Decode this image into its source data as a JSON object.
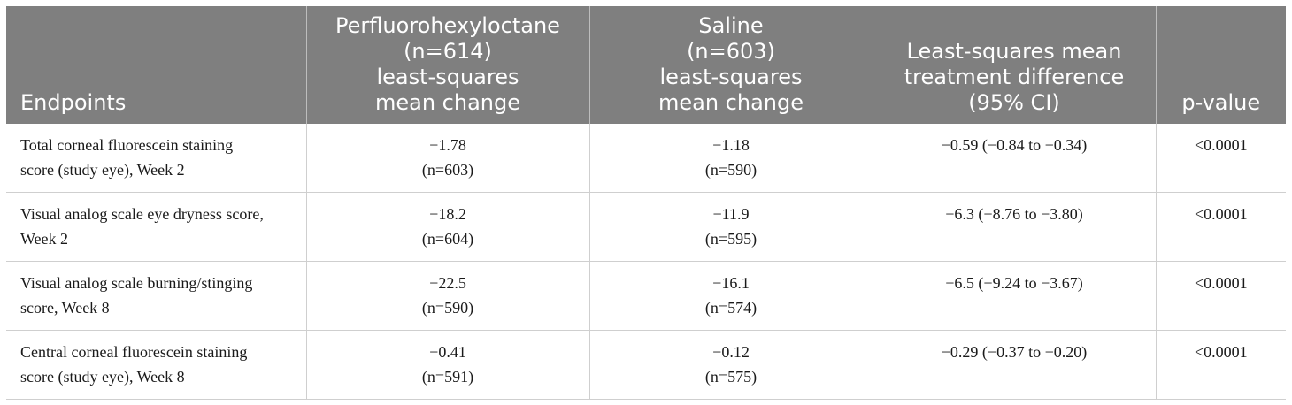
{
  "table": {
    "headers": [
      {
        "lines": [
          "Endpoints"
        ]
      },
      {
        "lines": [
          "Perfluorohexyloctane",
          "(n=614)",
          "least-squares",
          "mean change"
        ]
      },
      {
        "lines": [
          "Saline",
          "(n=603)",
          "least-squares",
          "mean change"
        ]
      },
      {
        "lines": [
          "Least-squares mean",
          "treatment difference",
          "(95% CI)"
        ]
      },
      {
        "lines": [
          "p-value"
        ]
      }
    ],
    "rows": [
      {
        "endpoint": [
          "Total corneal fluorescein staining",
          "score (study eye), Week 2"
        ],
        "pfho": [
          "−1.78",
          "(n=603)"
        ],
        "saline": [
          "−1.18",
          "(n=590)"
        ],
        "difference": "−0.59 (−0.84 to −0.34)",
        "p_value": "<0.0001"
      },
      {
        "endpoint": [
          "Visual analog scale eye dryness score,",
          "Week 2"
        ],
        "pfho": [
          "−18.2",
          "(n=604)"
        ],
        "saline": [
          "−11.9",
          "(n=595)"
        ],
        "difference": "−6.3 (−8.76 to −3.80)",
        "p_value": "<0.0001"
      },
      {
        "endpoint": [
          "Visual analog scale burning/stinging",
          "score, Week 8"
        ],
        "pfho": [
          "−22.5",
          "(n=590)"
        ],
        "saline": [
          "−16.1",
          "(n=574)"
        ],
        "difference": "−6.5 (−9.24 to −3.67)",
        "p_value": "<0.0001"
      },
      {
        "endpoint": [
          "Central corneal fluorescein staining",
          "score (study eye), Week 8"
        ],
        "pfho": [
          "−0.41",
          "(n=591)"
        ],
        "saline": [
          "−0.12",
          "(n=575)"
        ],
        "difference": "−0.29 (−0.37 to −0.20)",
        "p_value": "<0.0001"
      }
    ]
  }
}
